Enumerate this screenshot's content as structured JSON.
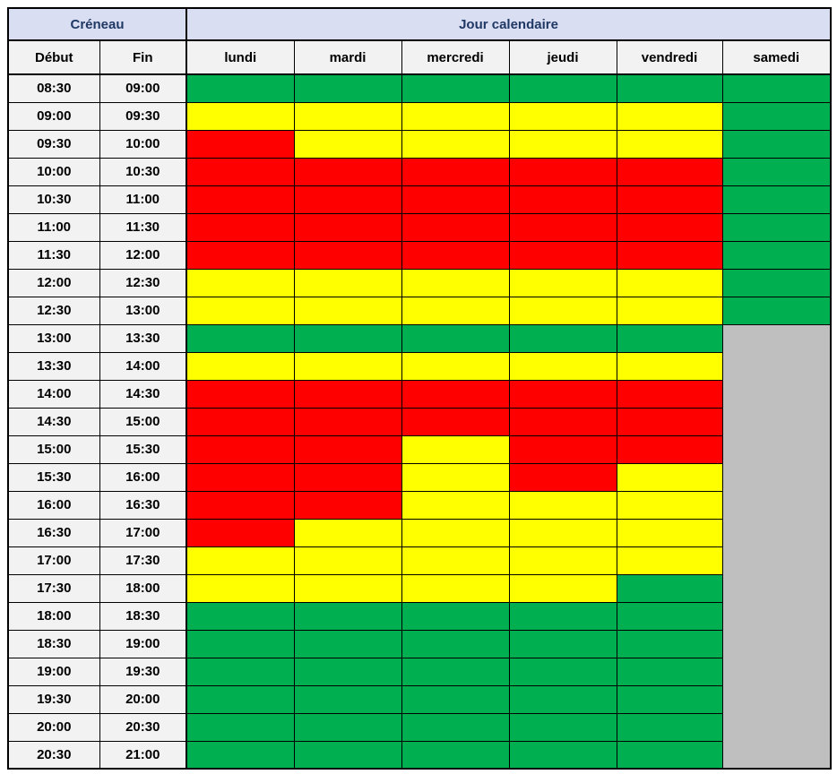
{
  "table": {
    "header1": {
      "creneau": "Créneau",
      "jour": "Jour calendaire"
    },
    "header2": {
      "debut": "Début",
      "fin": "Fin"
    },
    "days": [
      "lundi",
      "mardi",
      "mercredi",
      "jeudi",
      "vendredi",
      "samedi"
    ],
    "palette": {
      "green": "#00B050",
      "yellow": "#FFFF00",
      "red": "#FF0000",
      "gray": "#BFBFBF"
    },
    "header_colors": {
      "group_background": "#DADEF2",
      "group_text": "#1F3864",
      "colhead_background": "#F2F2F2",
      "time_background": "#F2F2F2"
    },
    "rows": [
      {
        "debut": "08:30",
        "fin": "09:00",
        "cells": [
          "green",
          "green",
          "green",
          "green",
          "green",
          "green"
        ]
      },
      {
        "debut": "09:00",
        "fin": "09:30",
        "cells": [
          "yellow",
          "yellow",
          "yellow",
          "yellow",
          "yellow",
          "green"
        ]
      },
      {
        "debut": "09:30",
        "fin": "10:00",
        "cells": [
          "red",
          "yellow",
          "yellow",
          "yellow",
          "yellow",
          "green"
        ]
      },
      {
        "debut": "10:00",
        "fin": "10:30",
        "cells": [
          "red",
          "red",
          "red",
          "red",
          "red",
          "green"
        ]
      },
      {
        "debut": "10:30",
        "fin": "11:00",
        "cells": [
          "red",
          "red",
          "red",
          "red",
          "red",
          "green"
        ]
      },
      {
        "debut": "11:00",
        "fin": "11:30",
        "cells": [
          "red",
          "red",
          "red",
          "red",
          "red",
          "green"
        ]
      },
      {
        "debut": "11:30",
        "fin": "12:00",
        "cells": [
          "red",
          "red",
          "red",
          "red",
          "red",
          "green"
        ]
      },
      {
        "debut": "12:00",
        "fin": "12:30",
        "cells": [
          "yellow",
          "yellow",
          "yellow",
          "yellow",
          "yellow",
          "green"
        ]
      },
      {
        "debut": "12:30",
        "fin": "13:00",
        "cells": [
          "yellow",
          "yellow",
          "yellow",
          "yellow",
          "yellow",
          "green"
        ]
      },
      {
        "debut": "13:00",
        "fin": "13:30",
        "cells": [
          "green",
          "green",
          "green",
          "green",
          "green",
          "gray"
        ]
      },
      {
        "debut": "13:30",
        "fin": "14:00",
        "cells": [
          "yellow",
          "yellow",
          "yellow",
          "yellow",
          "yellow",
          "gray"
        ]
      },
      {
        "debut": "14:00",
        "fin": "14:30",
        "cells": [
          "red",
          "red",
          "red",
          "red",
          "red",
          "gray"
        ]
      },
      {
        "debut": "14:30",
        "fin": "15:00",
        "cells": [
          "red",
          "red",
          "red",
          "red",
          "red",
          "gray"
        ]
      },
      {
        "debut": "15:00",
        "fin": "15:30",
        "cells": [
          "red",
          "red",
          "yellow",
          "red",
          "red",
          "gray"
        ]
      },
      {
        "debut": "15:30",
        "fin": "16:00",
        "cells": [
          "red",
          "red",
          "yellow",
          "red",
          "yellow",
          "gray"
        ]
      },
      {
        "debut": "16:00",
        "fin": "16:30",
        "cells": [
          "red",
          "red",
          "yellow",
          "yellow",
          "yellow",
          "gray"
        ]
      },
      {
        "debut": "16:30",
        "fin": "17:00",
        "cells": [
          "red",
          "yellow",
          "yellow",
          "yellow",
          "yellow",
          "gray"
        ]
      },
      {
        "debut": "17:00",
        "fin": "17:30",
        "cells": [
          "yellow",
          "yellow",
          "yellow",
          "yellow",
          "yellow",
          "gray"
        ]
      },
      {
        "debut": "17:30",
        "fin": "18:00",
        "cells": [
          "yellow",
          "yellow",
          "yellow",
          "yellow",
          "green",
          "gray"
        ]
      },
      {
        "debut": "18:00",
        "fin": "18:30",
        "cells": [
          "green",
          "green",
          "green",
          "green",
          "green",
          "gray"
        ]
      },
      {
        "debut": "18:30",
        "fin": "19:00",
        "cells": [
          "green",
          "green",
          "green",
          "green",
          "green",
          "gray"
        ]
      },
      {
        "debut": "19:00",
        "fin": "19:30",
        "cells": [
          "green",
          "green",
          "green",
          "green",
          "green",
          "gray"
        ]
      },
      {
        "debut": "19:30",
        "fin": "20:00",
        "cells": [
          "green",
          "green",
          "green",
          "green",
          "green",
          "gray"
        ]
      },
      {
        "debut": "20:00",
        "fin": "20:30",
        "cells": [
          "green",
          "green",
          "green",
          "green",
          "green",
          "gray"
        ]
      },
      {
        "debut": "20:30",
        "fin": "21:00",
        "cells": [
          "green",
          "green",
          "green",
          "green",
          "green",
          "gray"
        ]
      }
    ]
  }
}
